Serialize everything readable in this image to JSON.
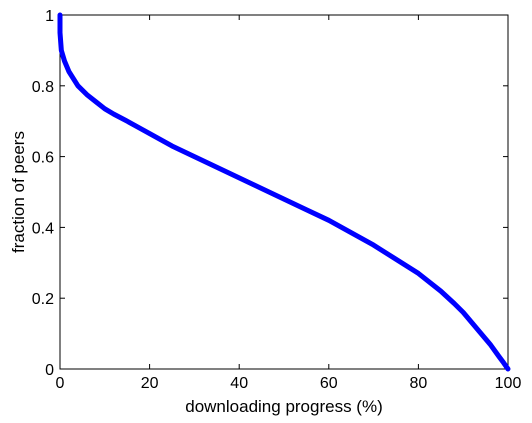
{
  "chart_data": {
    "type": "line",
    "title": "",
    "xlabel": "downloading progress (%)",
    "ylabel": "fraction of peers",
    "xlim": [
      0,
      100
    ],
    "ylim": [
      0,
      1
    ],
    "x_ticks": [
      0,
      20,
      40,
      60,
      80,
      100
    ],
    "y_ticks": [
      0,
      0.2,
      0.4,
      0.6,
      0.8,
      1
    ],
    "x_tick_labels": [
      "0",
      "20",
      "40",
      "60",
      "80",
      "100"
    ],
    "y_tick_labels": [
      "0",
      "0.2",
      "0.4",
      "0.6",
      "0.8",
      "1"
    ],
    "grid": false,
    "legend": "none",
    "series": [
      {
        "color": "#0000ff",
        "x": [
          0,
          0,
          0.3,
          1,
          2,
          4,
          6,
          8,
          10,
          12,
          15,
          20,
          25,
          30,
          35,
          40,
          45,
          50,
          55,
          60,
          65,
          70,
          75,
          80,
          85,
          88,
          90,
          92,
          94,
          96,
          98,
          99,
          100
        ],
        "y": [
          1.0,
          0.95,
          0.9,
          0.87,
          0.84,
          0.8,
          0.775,
          0.755,
          0.735,
          0.72,
          0.7,
          0.665,
          0.63,
          0.6,
          0.57,
          0.54,
          0.51,
          0.48,
          0.45,
          0.42,
          0.385,
          0.35,
          0.31,
          0.27,
          0.22,
          0.185,
          0.16,
          0.13,
          0.1,
          0.07,
          0.035,
          0.018,
          0.0
        ]
      }
    ]
  }
}
